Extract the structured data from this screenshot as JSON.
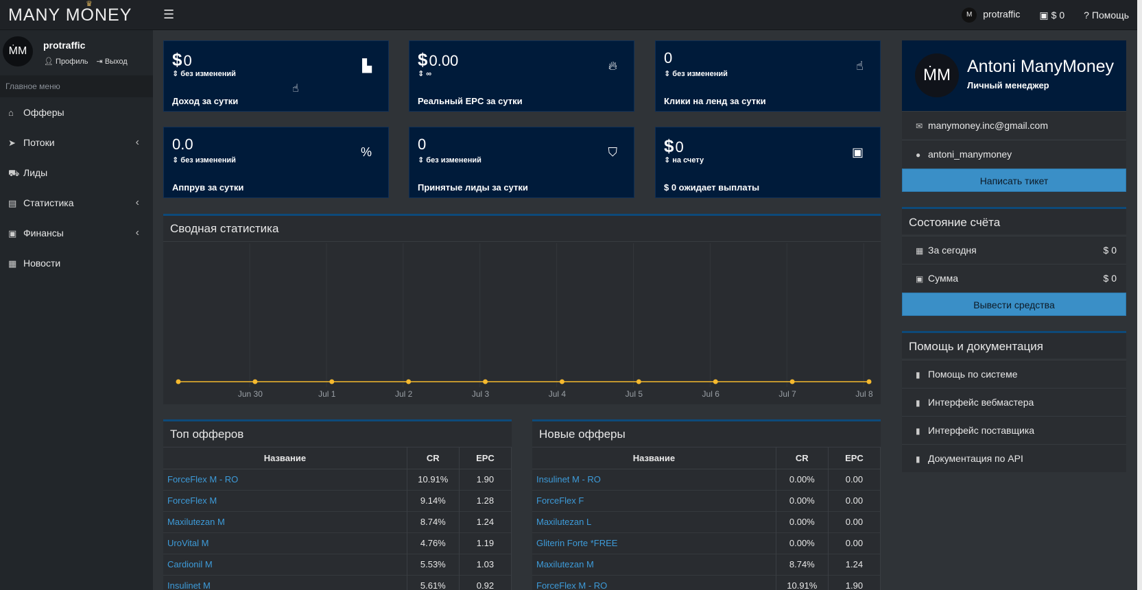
{
  "topbar": {
    "logo": "MANY MONEY",
    "username": "protraffic",
    "balance": "$ 0",
    "help": "Помощь"
  },
  "sidebar": {
    "username": "protraffic",
    "profile": "Профиль",
    "logout": "Выход",
    "menu_title": "Главное меню",
    "items": [
      {
        "label": "Офферы",
        "icon": "basket-icon",
        "chevron": false
      },
      {
        "label": "Потоки",
        "icon": "paper-plane-icon",
        "chevron": true
      },
      {
        "label": "Лиды",
        "icon": "cart-icon",
        "chevron": false
      },
      {
        "label": "Статистика",
        "icon": "chart-icon",
        "chevron": true
      },
      {
        "label": "Финансы",
        "icon": "money-icon",
        "chevron": true
      },
      {
        "label": "Новости",
        "icon": "newspaper-icon",
        "chevron": false
      }
    ]
  },
  "cards": [
    {
      "currency": "$",
      "value": "0",
      "sub": "без изменений",
      "label": "Доход за сутки",
      "icon": "area-chart-icon"
    },
    {
      "currency": "$",
      "value": "0.00",
      "sub": "∞",
      "label": "Реальный EPC за сутки",
      "icon": "fire-icon"
    },
    {
      "currency": "",
      "value": "0",
      "sub": "без изменений",
      "label": "Клики на ленд за сутки",
      "icon": "pointer-hand-icon"
    },
    {
      "currency": "",
      "value": "0.0",
      "sub": "без изменений",
      "label": "Аппрув за сутки",
      "icon": "percent-icon"
    },
    {
      "currency": "",
      "value": "0",
      "sub": "без изменений",
      "label": "Принятые лиды за сутки",
      "icon": "basket-icon"
    },
    {
      "currency": "$",
      "value": "0",
      "sub": "на счету",
      "label": "$ 0 ожидает выплаты",
      "icon": "money-icon"
    }
  ],
  "summary": {
    "title": "Сводная статистика"
  },
  "chart_data": {
    "type": "line",
    "categories": [
      "",
      "Jun 30",
      "Jul 1",
      "Jul 2",
      "Jul 3",
      "Jul 4",
      "Jul 5",
      "Jul 6",
      "Jul 7",
      "Jul 8"
    ],
    "series": [
      {
        "values": [
          0,
          0,
          0,
          0,
          0,
          0,
          0,
          0,
          0,
          0
        ]
      }
    ],
    "color": "#f5b92e",
    "grid": true
  },
  "top_offers": {
    "title": "Топ офферов",
    "columns": [
      "Название",
      "CR",
      "EPC"
    ],
    "rows": [
      [
        "ForceFlex M - RO",
        "10.91%",
        "1.90"
      ],
      [
        "ForceFlex M",
        "9.14%",
        "1.28"
      ],
      [
        "Maxilutezan M",
        "8.74%",
        "1.24"
      ],
      [
        "UroVital M",
        "4.76%",
        "1.19"
      ],
      [
        "Cardionil M",
        "5.53%",
        "1.03"
      ],
      [
        "Insulinet M",
        "5.61%",
        "0.92"
      ]
    ]
  },
  "new_offers": {
    "title": "Новые офферы",
    "columns": [
      "Название",
      "CR",
      "EPC"
    ],
    "rows": [
      [
        "Insulinet M - RO",
        "0.00%",
        "0.00"
      ],
      [
        "ForceFlex F",
        "0.00%",
        "0.00"
      ],
      [
        "Maxilutezan L",
        "0.00%",
        "0.00"
      ],
      [
        "Gliterin Forte *FREE",
        "0.00%",
        "0.00"
      ],
      [
        "Maxilutezan M",
        "8.74%",
        "1.24"
      ],
      [
        "ForceFlex M - RO",
        "10.91%",
        "1.90"
      ]
    ]
  },
  "manager": {
    "name": "Antoni ManyMoney",
    "role": "Личный менеджер",
    "email": "manymoney.inc@gmail.com",
    "telegram": "antoni_manymoney",
    "ticket_button": "Написать тикет"
  },
  "account": {
    "title": "Состояние счёта",
    "today_label": "За сегодня",
    "today_value": "$ 0",
    "sum_label": "Сумма",
    "sum_value": "$ 0",
    "withdraw_button": "Вывести средства"
  },
  "help": {
    "title": "Помощь и документация",
    "items": [
      "Помощь по системе",
      "Интерфейс вебмастера",
      "Интерфейс поставщика",
      "Документация по API"
    ]
  }
}
